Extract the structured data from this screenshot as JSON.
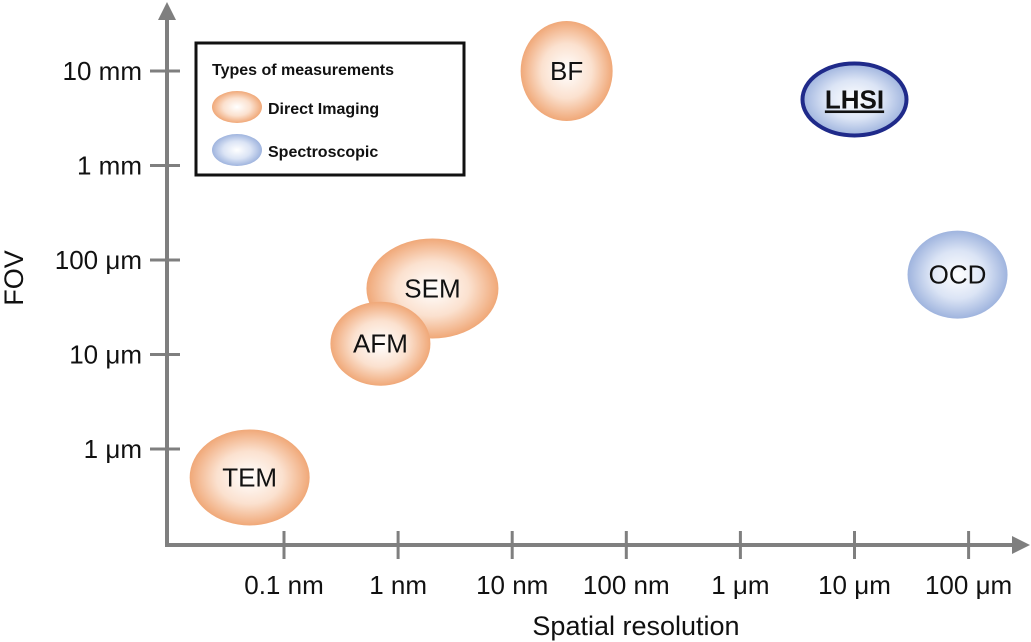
{
  "chart_data": {
    "type": "scatter",
    "title": "",
    "xlabel": "Spatial resolution",
    "ylabel": "FOV",
    "x_ticks": [
      "0.1 nm",
      "1 nm",
      "10 nm",
      "100 nm",
      "1 μm",
      "10 μm",
      "100 μm"
    ],
    "y_ticks": [
      "1 μm",
      "10 μm",
      "100 μm",
      "1 mm",
      "10 mm"
    ],
    "x_scale": "log",
    "y_scale": "log",
    "grid": false,
    "legend": {
      "title": "Types of measurements",
      "placement": "top-left",
      "items": [
        {
          "label": "Direct Imaging",
          "color": "#f0a878"
        },
        {
          "label": "Spectroscopic",
          "color": "#9fb4de"
        }
      ]
    },
    "points": [
      {
        "label": "BF",
        "x_m": 3e-08,
        "y_m": 0.01,
        "category": "Direct Imaging",
        "emphasis": false
      },
      {
        "label": "LHSI",
        "x_m": 1e-05,
        "y_m": 0.005,
        "category": "Spectroscopic",
        "emphasis": true
      },
      {
        "label": "SEM",
        "x_m": 2e-09,
        "y_m": 5e-05,
        "category": "Direct Imaging",
        "emphasis": false
      },
      {
        "label": "OCD",
        "x_m": 8e-05,
        "y_m": 7e-05,
        "category": "Spectroscopic",
        "emphasis": false
      },
      {
        "label": "AFM",
        "x_m": 7e-10,
        "y_m": 1.3e-05,
        "category": "Direct Imaging",
        "emphasis": false
      },
      {
        "label": "TEM",
        "x_m": 5e-11,
        "y_m": 5e-07,
        "category": "Direct Imaging",
        "emphasis": false
      }
    ],
    "colors": {
      "direct_fill": "#f0a878",
      "spectro_fill": "#9fb4de",
      "emphasis_border": "#1f2a8a",
      "axis": "#7f7f7f"
    }
  }
}
